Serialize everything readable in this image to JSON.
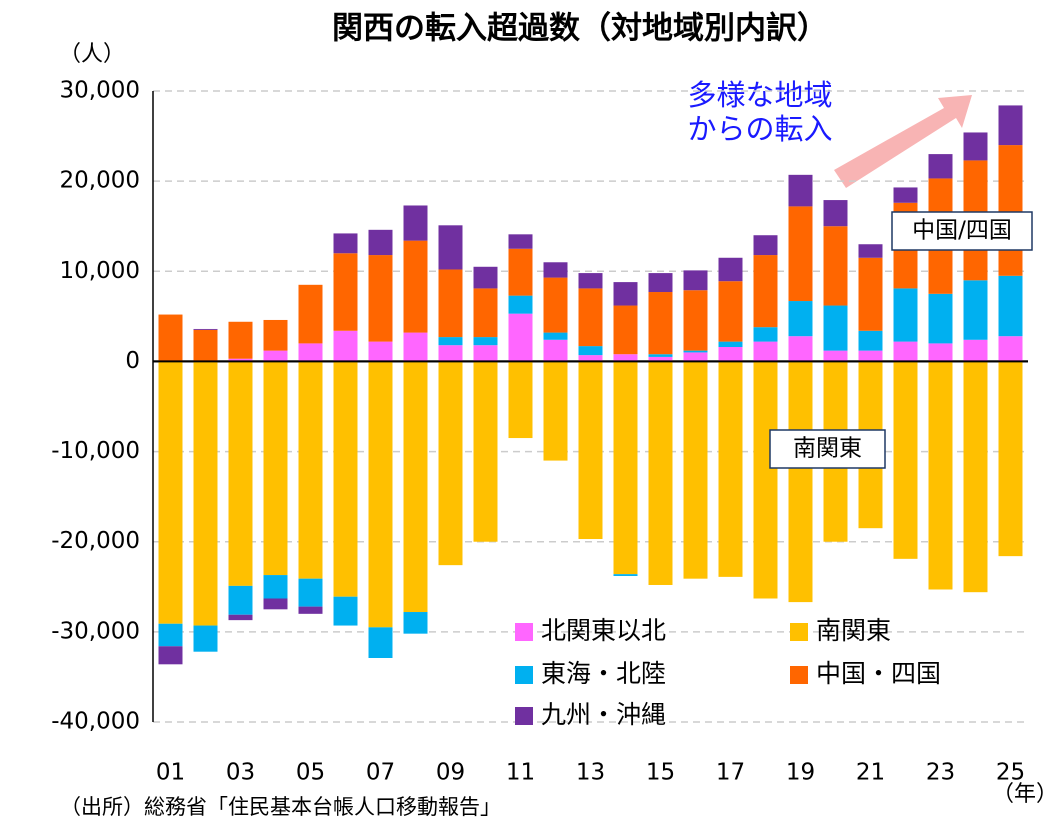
{
  "chart_data": {
    "type": "stacked_bar",
    "title": "関西の転入超過数（対地域別内訳）",
    "y_unit": "（人）",
    "x_unit": "（年）",
    "source": "（出所）総務省「住民基本台帳人口移動報告」",
    "annotations": [
      "多様な地域",
      "からの転入",
      "中国/四国",
      "南関東"
    ],
    "categories": [
      "01",
      null,
      "03",
      null,
      "05",
      null,
      "07",
      null,
      "09",
      null,
      "11",
      null,
      "13",
      null,
      "15",
      null,
      "17",
      null,
      "19",
      null,
      "21",
      null,
      "23",
      null,
      "25"
    ],
    "series": [
      {
        "name": "北関東以北",
        "color": "#ff66ff",
        "values": [
          0,
          0,
          300,
          1200,
          2000,
          3400,
          2200,
          3200,
          1800,
          1800,
          5300,
          2400,
          700,
          800,
          500,
          1000,
          1600,
          2200,
          2800,
          1200,
          1200,
          2200,
          2000,
          2400,
          2800
        ]
      },
      {
        "name": "南関東",
        "color": "#ffc000",
        "values": [
          -29100,
          -29300,
          -24900,
          -23700,
          -24100,
          -26100,
          -29500,
          -27800,
          -22600,
          -20000,
          -8500,
          -11000,
          -19700,
          -23600,
          -24800,
          -24100,
          -23900,
          -26300,
          -26700,
          -20000,
          -18500,
          -21900,
          -25300,
          -25600,
          -21600
        ]
      },
      {
        "name": "東海・北陸",
        "color": "#00b0f0",
        "values": [
          -2500,
          -2900,
          -3200,
          -2600,
          -3100,
          -3200,
          -3400,
          -2400,
          900,
          900,
          2000,
          800,
          1000,
          -200,
          300,
          200,
          600,
          1600,
          3900,
          5000,
          2200,
          5900,
          5500,
          6600,
          6700
        ]
      },
      {
        "name": "中国・四国",
        "color": "#ff6600",
        "values": [
          5200,
          3500,
          4100,
          3400,
          6500,
          8600,
          9600,
          10200,
          7500,
          5400,
          5200,
          6100,
          6400,
          5400,
          6900,
          6700,
          6700,
          8000,
          10500,
          8800,
          8100,
          9500,
          12800,
          13300,
          14500
        ]
      },
      {
        "name": "九州・沖縄",
        "color": "#7030a0",
        "values": [
          -2000,
          100,
          -600,
          -1200,
          -800,
          2200,
          2800,
          3900,
          4900,
          2400,
          1600,
          1700,
          1700,
          2600,
          2100,
          2200,
          2600,
          2200,
          3500,
          2900,
          1500,
          1700,
          2700,
          3100,
          4400
        ]
      }
    ],
    "ylim": [
      -40000,
      30000
    ],
    "yticks": [
      {
        "value": -40000,
        "label": "-40,000"
      },
      {
        "value": -30000,
        "label": "-30,000"
      },
      {
        "value": -20000,
        "label": "-20,000"
      },
      {
        "value": -10000,
        "label": "-10,000"
      },
      0,
      {
        "value": 10000,
        "label": "10,000"
      },
      {
        "value": 20000,
        "label": "20,000"
      },
      {
        "value": 30000,
        "label": "30,000"
      }
    ],
    "grid": true,
    "legend": "lower right"
  }
}
